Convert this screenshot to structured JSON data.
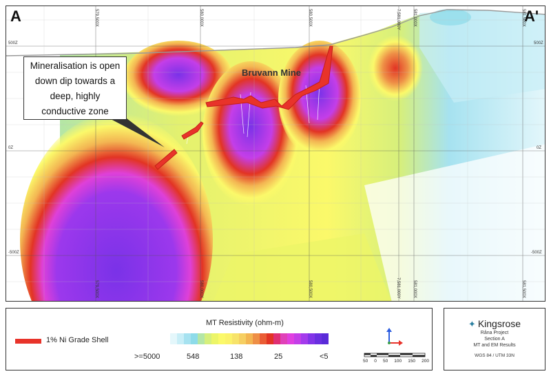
{
  "section": {
    "corner_left": "A",
    "corner_right": "A'",
    "top_labels": [
      "579,500X",
      "580,000X",
      "580,500X",
      "7,581,000Y",
      "581,000X",
      "581,500X"
    ],
    "bottom_labels": [
      "579,500X",
      "580,000X",
      "580,500X",
      "7,581,000Y",
      "581,000X",
      "581,500X"
    ],
    "left_elevations": [
      "500Z",
      "0Z",
      "-500Z"
    ],
    "right_elevations": [
      "500Z",
      "0Z",
      "-500Z"
    ],
    "callout_lines": [
      "Mineralisation is open",
      "down dip towards a",
      "deep, highly",
      "conductive zone"
    ],
    "mine_label": "Bruvann Mine"
  },
  "legend": {
    "shell_label": "1% Ni Grade Shell",
    "shell_color": "#e8332a",
    "resistivity_title": "MT Resistivity (ohm-m)",
    "ticks": [
      ">=5000",
      "548",
      "138",
      "25",
      "<5"
    ],
    "colors": [
      "#ffffff",
      "#e4f7fb",
      "#c8eef7",
      "#a6e2f0",
      "#8ddbe9",
      "#b4e6a6",
      "#d6ef7c",
      "#ecf568",
      "#fbf96a",
      "#fbf26a",
      "#f7e36a",
      "#f6cf62",
      "#f3b552",
      "#ee8f46",
      "#ea5d35",
      "#e23424",
      "#df2f73",
      "#e041b8",
      "#e040e0",
      "#c43ee8",
      "#a43bec",
      "#8234e8",
      "#6a2fe0",
      "#5a2bd8"
    ],
    "scale_ticks": [
      "50",
      "0",
      "50",
      "100",
      "150",
      "200"
    ]
  },
  "titleblock": {
    "brand": "Kingsrose",
    "project": "Råna Project",
    "section": "Section A",
    "subtitle": "MT and EM Results",
    "crs": "WGS 84 / UTM 33N"
  }
}
